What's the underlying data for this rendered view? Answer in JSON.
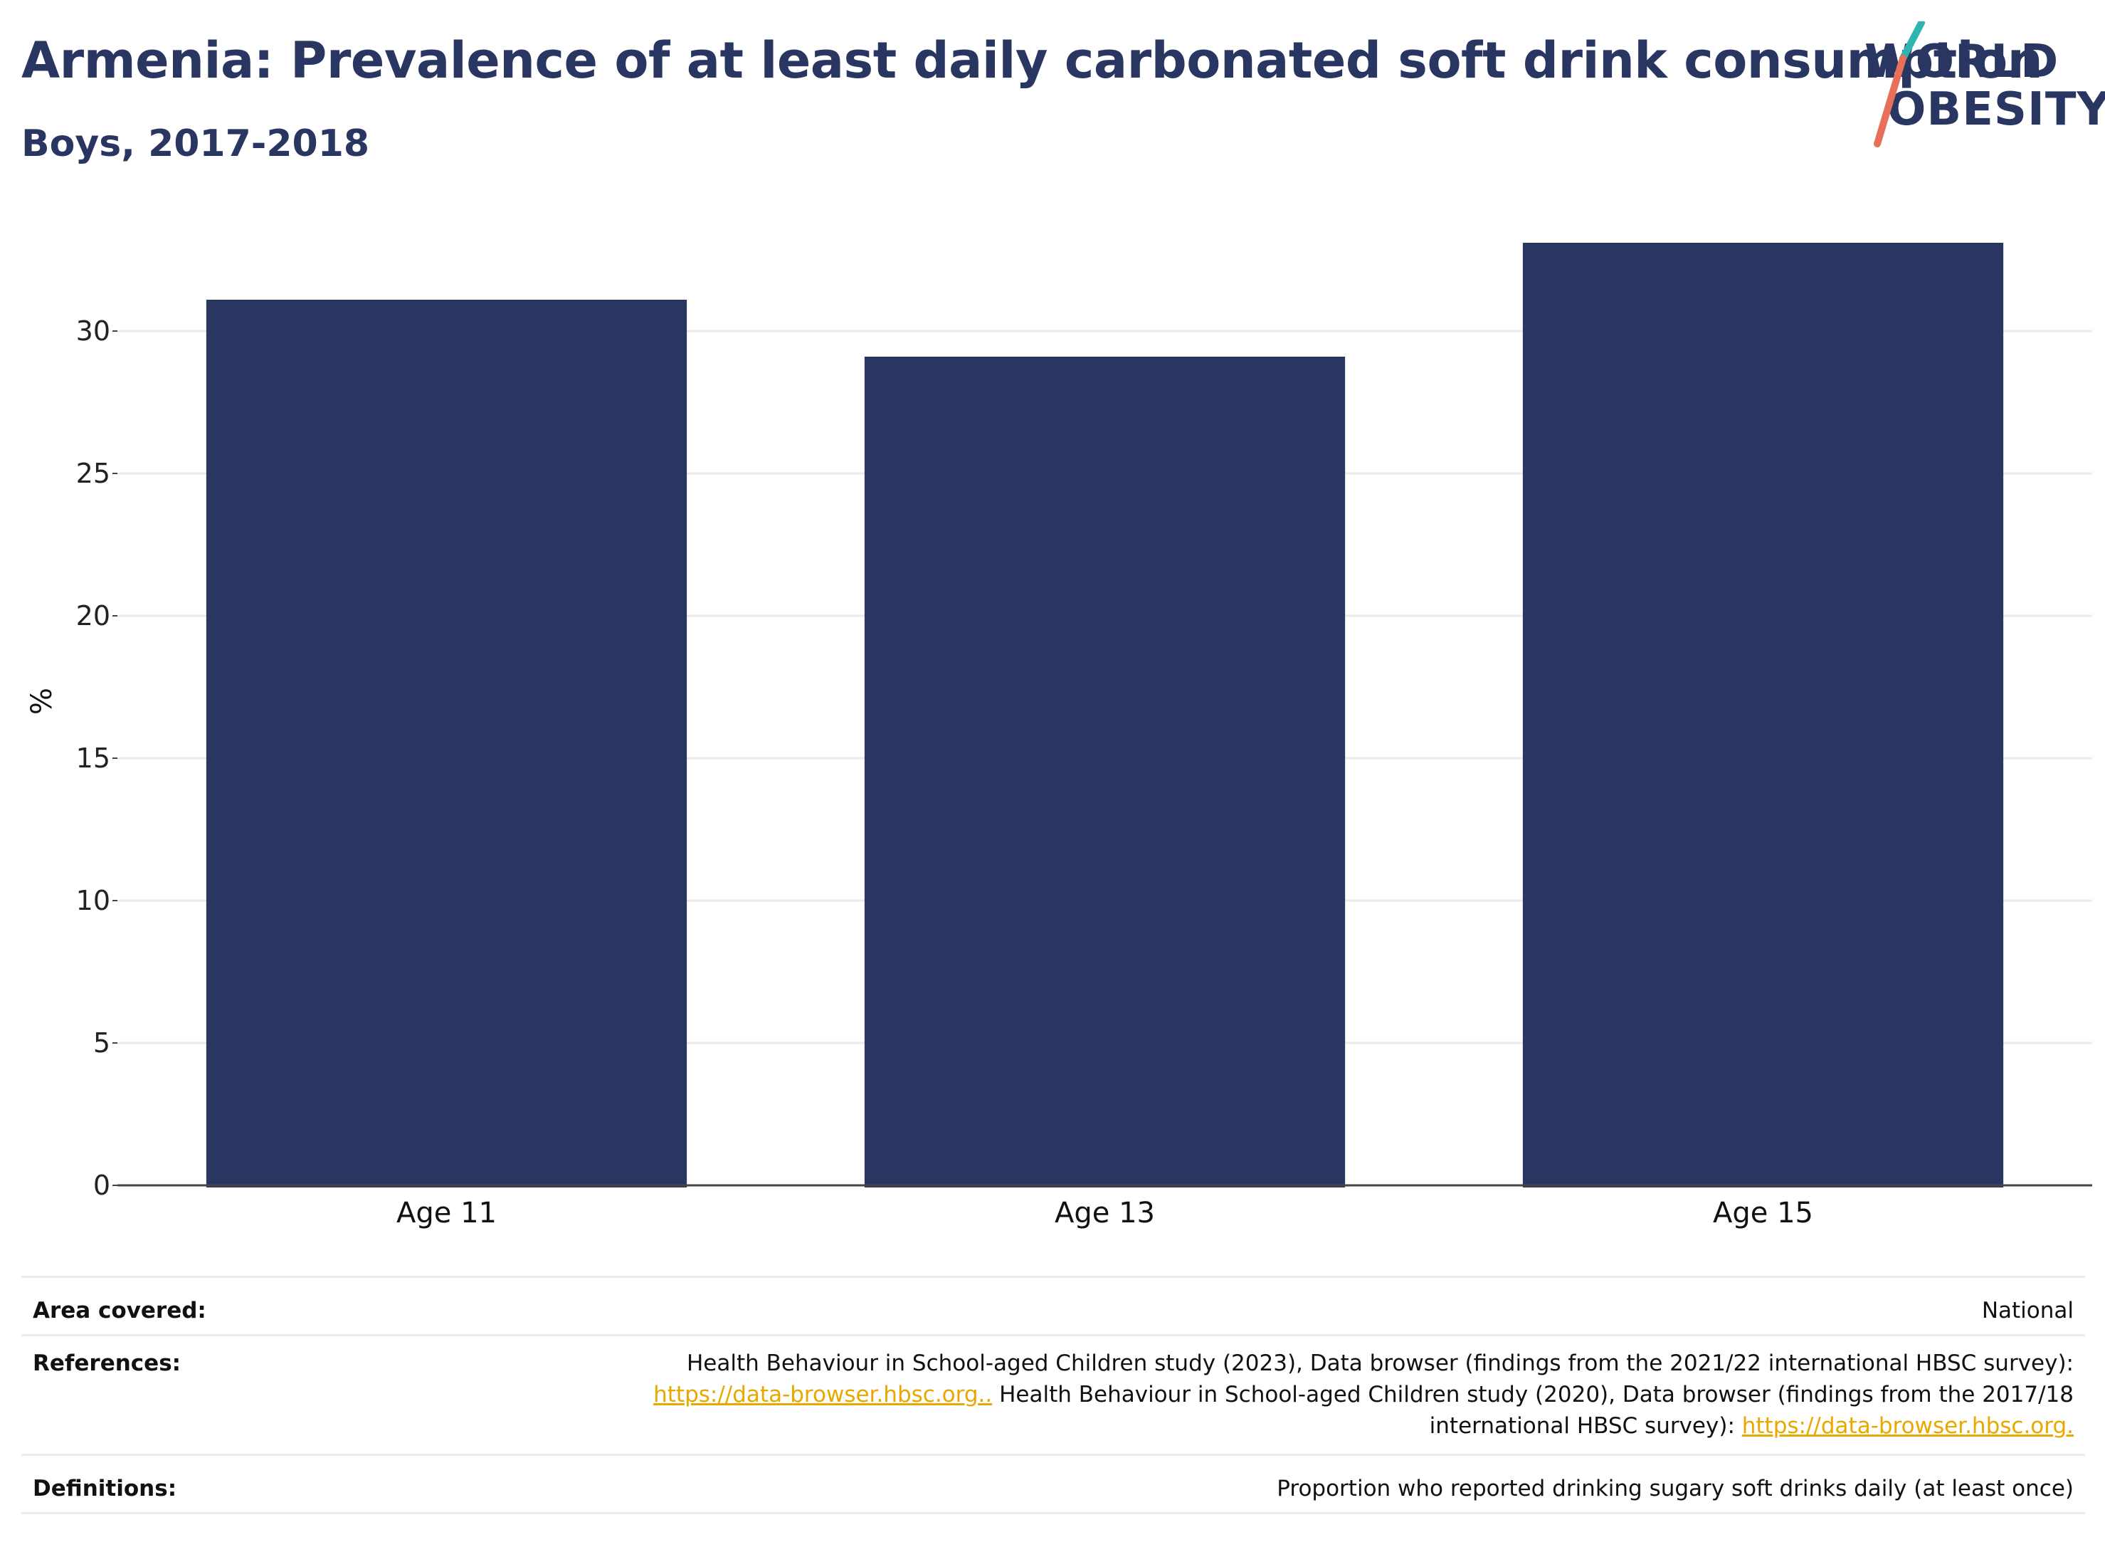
{
  "header": {
    "title": "Armenia: Prevalence of at least daily carbonated soft drink consumption",
    "subtitle": "Boys, 2017-2018"
  },
  "logo": {
    "line1": "WORLD",
    "line2": "OBESITY"
  },
  "colors": {
    "bar": "#2a3662",
    "title": "#2a3662",
    "grid": "#ebebeb",
    "link": "#e8a800",
    "logo_teal": "#2fb5b0",
    "logo_coral": "#e8705b"
  },
  "chart_data": {
    "type": "bar",
    "categories": [
      "Age 11",
      "Age 13",
      "Age 15"
    ],
    "values": [
      31.1,
      29.1,
      33.1
    ],
    "ylabel": "%",
    "xlabel": "",
    "ylim": [
      0,
      34
    ],
    "yticks": [
      0,
      5,
      10,
      15,
      20,
      25,
      30
    ],
    "grid": true
  },
  "meta": {
    "area_key": "Area covered:",
    "area_val": "National",
    "ref_key": "References:",
    "ref_line1": "Health Behaviour in School-aged Children study (2023), Data browser (findings from the 2021/22 international HBSC survey):",
    "ref_link1": "https://data-browser.hbsc.org..",
    "ref_line2b": " Health Behaviour in School-aged Children study (2020), Data browser (findings from the 2017/18",
    "ref_line3a": "international HBSC survey): ",
    "ref_link2": "https://data-browser.hbsc.org.",
    "def_key": "Definitions:",
    "def_val": "Proportion who reported drinking sugary soft drinks daily (at least once)"
  }
}
